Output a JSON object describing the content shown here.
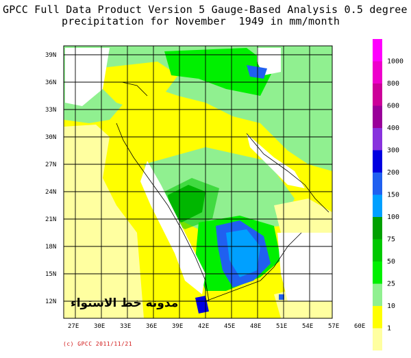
{
  "title": {
    "line1": "GPCC Full Data Product Version 5 Gauge-Based Analysis 0.5 degree",
    "line2": "precipitation for November  1949 in mm/month"
  },
  "map": {
    "lat_labels": [
      "39N",
      "36N",
      "33N",
      "30N",
      "27N",
      "24N",
      "21N",
      "18N",
      "15N",
      "12N"
    ],
    "lon_labels": [
      "27E",
      "30E",
      "33E",
      "36E",
      "39E",
      "42E",
      "45E",
      "48E",
      "51E",
      "54E",
      "57E",
      "60E"
    ],
    "lat_range": [
      10,
      39.5
    ],
    "lon_range": [
      25,
      60
    ]
  },
  "legend": {
    "labels": [
      "1000",
      "800",
      "600",
      "400",
      "300",
      "200",
      "150",
      "100",
      "75",
      "50",
      "25",
      "10",
      "1"
    ],
    "colors": [
      "#ff00ff",
      "#ee00cc",
      "#cc0099",
      "#990099",
      "#8833dd",
      "#0000e0",
      "#2060f0",
      "#00a0ff",
      "#00a000",
      "#00c800",
      "#00f000",
      "#90f090",
      "#ffff00",
      "#ffffa0"
    ]
  },
  "credit": "(c) GPCC 2011/11/21",
  "watermark": "مدونة خط الاستواء"
}
